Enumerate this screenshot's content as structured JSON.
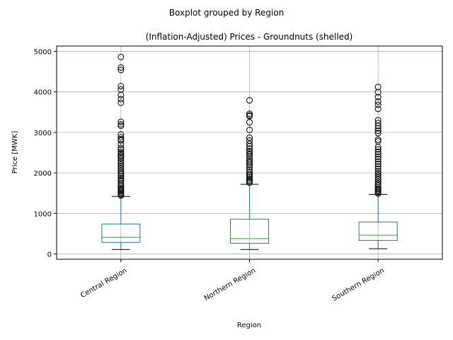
{
  "chart_data": {
    "type": "box",
    "suptitle": "Boxplot grouped by Region",
    "title": "(Inflation-Adjusted) Prices - Groundnuts (shelled)",
    "xlabel": "Region",
    "ylabel": "Price [MWK]",
    "ylim": [
      -130,
      5130
    ],
    "yticks": [
      0,
      1000,
      2000,
      3000,
      4000,
      5000
    ],
    "grid": true,
    "categories": [
      "Central Region",
      "Northern Region",
      "Southern Region"
    ],
    "boxes": [
      {
        "name": "Central Region",
        "whislo": 110,
        "q1": 285,
        "med": 410,
        "q3": 740,
        "whishi": 1420,
        "fliers": [
          4860,
          4600,
          4540,
          4140,
          4060,
          3920,
          3820,
          3730,
          3260,
          3200,
          3160,
          2950,
          2880,
          2830,
          2800,
          2700,
          2620,
          2580,
          2520,
          2470,
          2430,
          2400,
          2360,
          2300,
          2250,
          2200,
          2150,
          2100,
          2050,
          2000,
          1960,
          1920,
          1880,
          1840,
          1800,
          1740,
          1700,
          1660,
          1620,
          1590,
          1560,
          1530,
          1500,
          1470,
          1440
        ]
      },
      {
        "name": "Northern Region",
        "whislo": 110,
        "q1": 265,
        "med": 380,
        "q3": 860,
        "whishi": 1720,
        "fliers": [
          3790,
          3460,
          3420,
          3400,
          3250,
          3060,
          2870,
          2800,
          2720,
          2660,
          2600,
          2540,
          2500,
          2450,
          2400,
          2340,
          2290,
          2250,
          2200,
          2150,
          2080,
          2030,
          1980,
          1940,
          1900,
          1860,
          1820,
          1790,
          1760
        ]
      },
      {
        "name": "Southern Region",
        "whislo": 130,
        "q1": 335,
        "med": 465,
        "q3": 790,
        "whishi": 1470,
        "fliers": [
          4120,
          3990,
          3870,
          3760,
          3680,
          3580,
          3300,
          3230,
          3160,
          3100,
          3040,
          2980,
          2820,
          2780,
          2640,
          2580,
          2520,
          2460,
          2400,
          2340,
          2280,
          2220,
          2160,
          2100,
          2040,
          1990,
          1940,
          1890,
          1840,
          1780,
          1730,
          1690,
          1650,
          1610,
          1580,
          1550,
          1520,
          1490
        ]
      }
    ],
    "colors": {
      "box": "#1f77b4",
      "median": "#2ca02c",
      "whisker": "#000000",
      "grid": "#b0b0b0"
    }
  }
}
